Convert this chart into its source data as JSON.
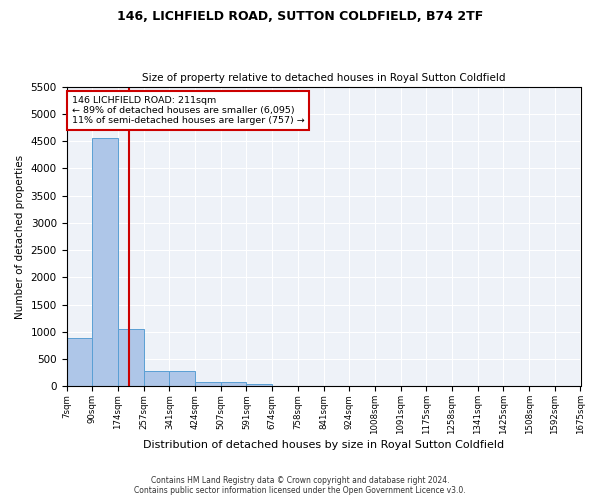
{
  "title1": "146, LICHFIELD ROAD, SUTTON COLDFIELD, B74 2TF",
  "title2": "Size of property relative to detached houses in Royal Sutton Coldfield",
  "xlabel": "Distribution of detached houses by size in Royal Sutton Coldfield",
  "ylabel": "Number of detached properties",
  "footnote1": "Contains HM Land Registry data © Crown copyright and database right 2024.",
  "footnote2": "Contains public sector information licensed under the Open Government Licence v3.0.",
  "annotation_line1": "146 LICHFIELD ROAD: 211sqm",
  "annotation_line2": "← 89% of detached houses are smaller (6,095)",
  "annotation_line3": "11% of semi-detached houses are larger (757) →",
  "property_size": 211,
  "bar_color": "#aec6e8",
  "bar_edge_color": "#5a9fd4",
  "vline_color": "#cc0000",
  "annotation_box_color": "#cc0000",
  "background_color": "#eef2f8",
  "ylim": [
    0,
    5500
  ],
  "yticks": [
    0,
    500,
    1000,
    1500,
    2000,
    2500,
    3000,
    3500,
    4000,
    4500,
    5000,
    5500
  ],
  "bin_edges": [
    7,
    90,
    174,
    257,
    341,
    424,
    507,
    591,
    674,
    758,
    841,
    924,
    1008,
    1091,
    1175,
    1258,
    1341,
    1425,
    1508,
    1592,
    1675
  ],
  "bar_heights": [
    880,
    4550,
    1060,
    290,
    290,
    80,
    80,
    50,
    0,
    0,
    0,
    0,
    0,
    0,
    0,
    0,
    0,
    0,
    0,
    0
  ],
  "tick_labels": [
    "7sqm",
    "90sqm",
    "174sqm",
    "257sqm",
    "341sqm",
    "424sqm",
    "507sqm",
    "591sqm",
    "674sqm",
    "758sqm",
    "841sqm",
    "924sqm",
    "1008sqm",
    "1091sqm",
    "1175sqm",
    "1258sqm",
    "1341sqm",
    "1425sqm",
    "1508sqm",
    "1592sqm",
    "1675sqm"
  ]
}
